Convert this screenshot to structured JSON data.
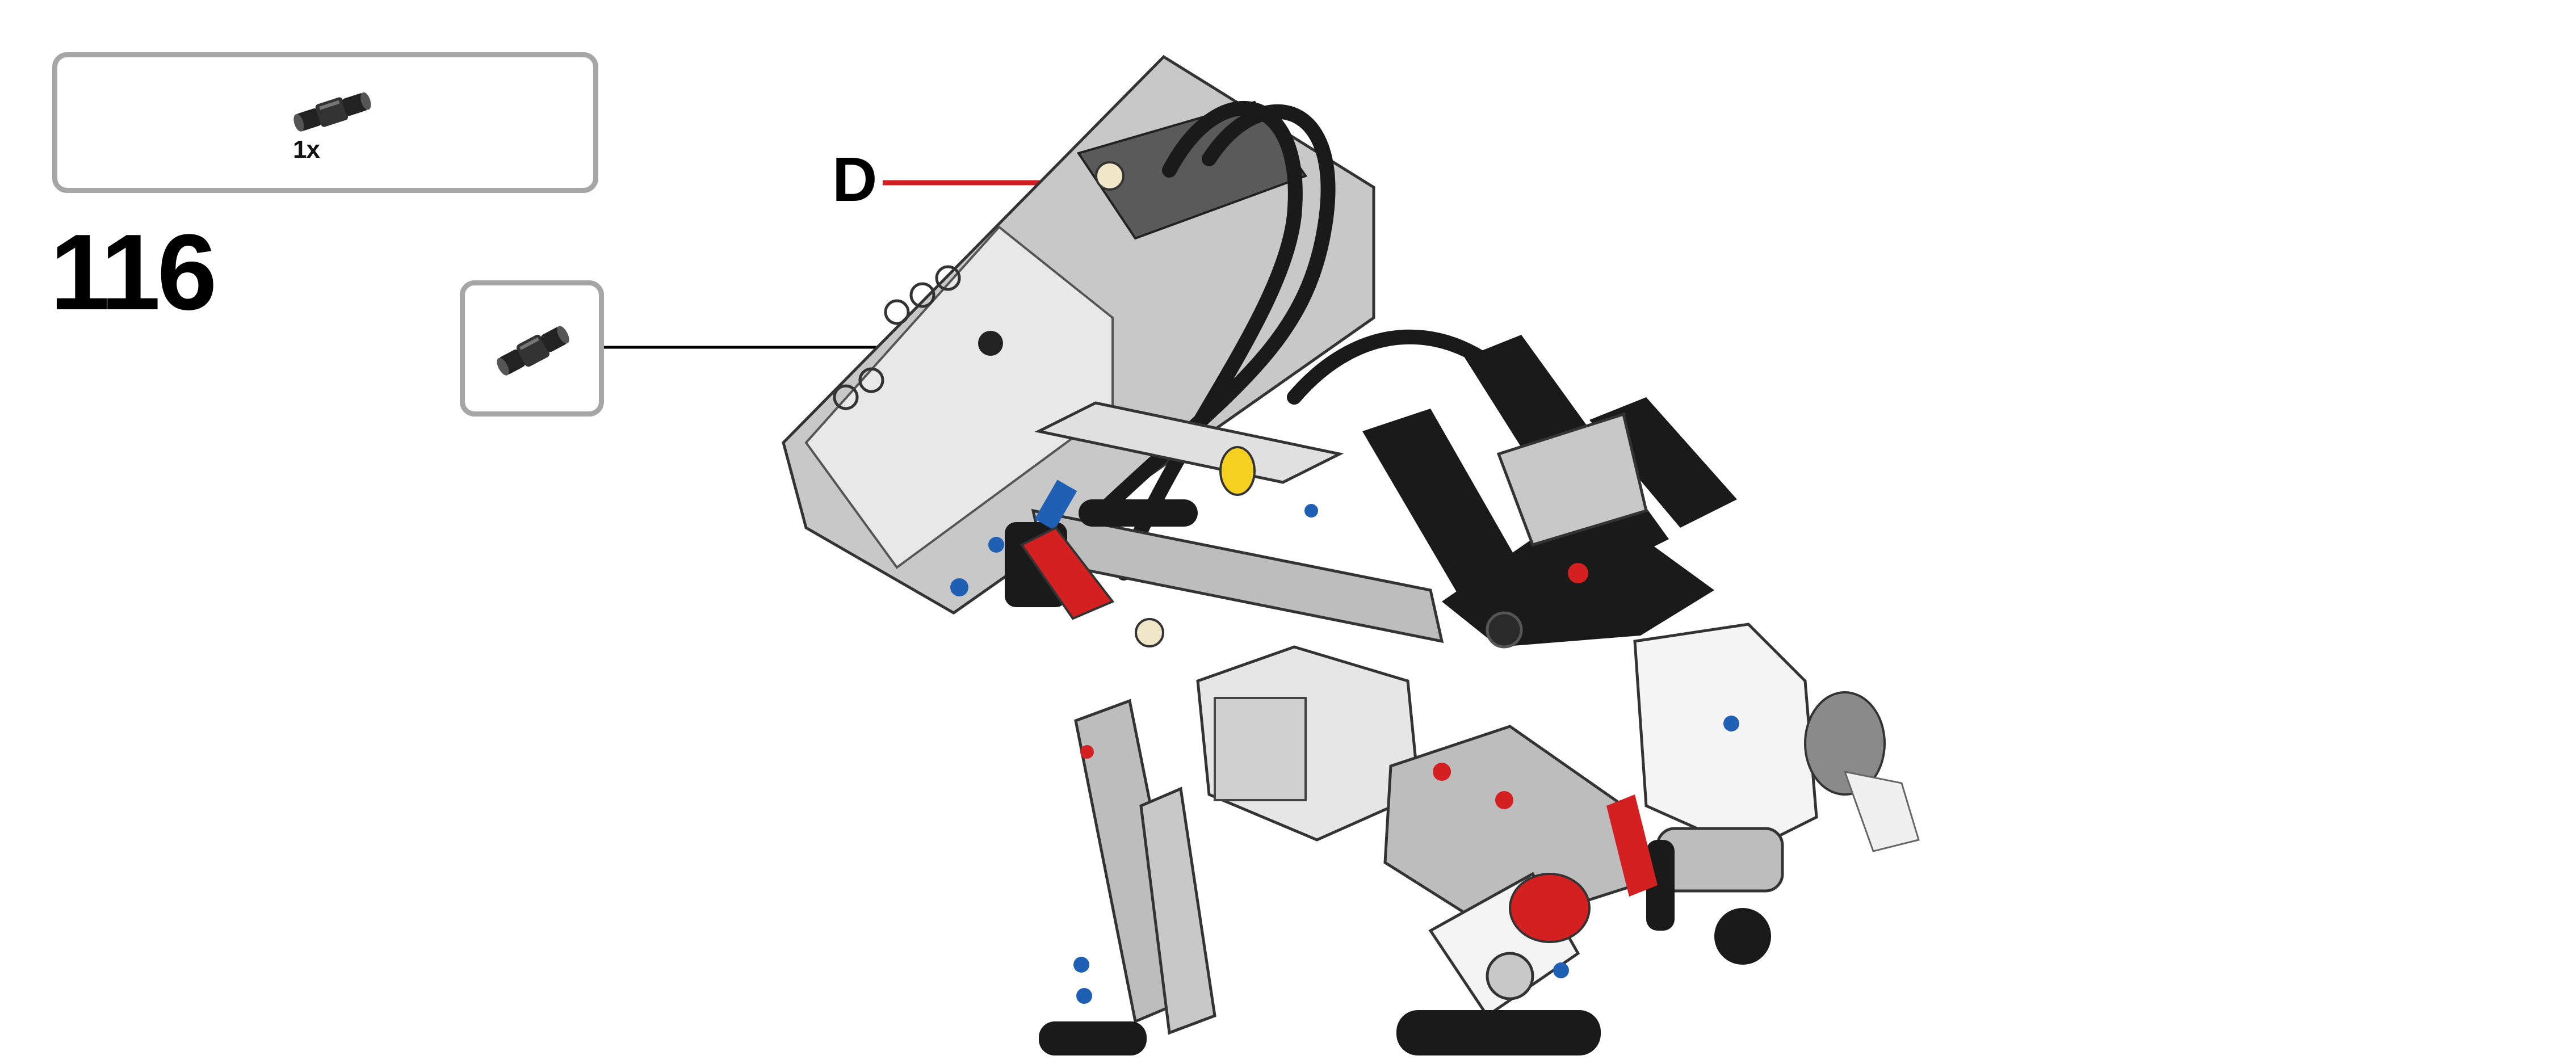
{
  "step": {
    "number": "116"
  },
  "parts_list": {
    "items": [
      {
        "icon": "axle-pin-connector-icon",
        "quantity": "1x"
      }
    ]
  },
  "callout": {
    "icon": "axle-pin-connector-icon"
  },
  "port_label": {
    "text": "D",
    "line_color": "#d42020"
  },
  "colors": {
    "box_border": "#a6a6a6",
    "pointer_line": "#000000",
    "brick_gray": "#c8c8c8",
    "dark_gray": "#5a5a5a",
    "black": "#1a1a1a",
    "red": "#d42020",
    "blue": "#1f5fb4",
    "yellow": "#f5d020",
    "white": "#f4f4f4",
    "tan": "#f0e6c8"
  }
}
